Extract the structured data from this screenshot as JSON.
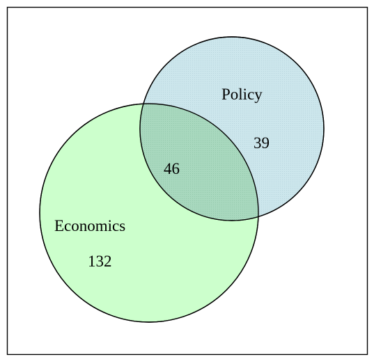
{
  "diagram": {
    "type": "venn",
    "sets": [
      {
        "id": "economics",
        "label": "Economics",
        "only_count": "132",
        "fill_color": "#ccffcc",
        "stroke_color": "#000000"
      },
      {
        "id": "policy",
        "label": "Policy",
        "only_count": "39",
        "fill_color": "#cce6ec",
        "stroke_color": "#000000"
      }
    ],
    "intersection": {
      "count": "46",
      "fill_color": "#a8d8be"
    },
    "frame_color": "#000000",
    "background_color": "#ffffff"
  }
}
